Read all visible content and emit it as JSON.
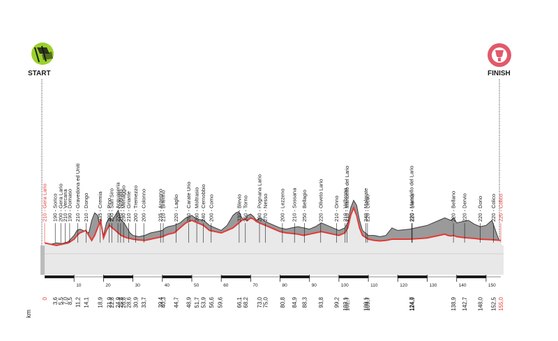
{
  "start_label": "START",
  "finish_label": "FINISH",
  "km_label": "km",
  "colors": {
    "accent_red": "#e53935",
    "profile_gray": "#8a8a8a",
    "profile_fill_dark": "#b5b5b5",
    "profile_fill_light": "#e6e6e6",
    "axis_dark": "#1a1a1a",
    "start_icon_green": "#9bd12b",
    "finish_icon_pink": "#e05a6a"
  },
  "chart_data": {
    "type": "area",
    "title": "",
    "xlabel": "km",
    "ylabel": "",
    "xlim": [
      0,
      155
    ],
    "scale_ticks": [
      "10",
      "20",
      "30",
      "40",
      "50",
      "60",
      "70",
      "80",
      "90",
      "100",
      "110",
      "120",
      "130",
      "140",
      "150"
    ],
    "waypoints": [
      {
        "km": "0",
        "label": "210 - Gera Lario",
        "highlight": true
      },
      {
        "km": "3,6",
        "label": "190 - Sorico"
      },
      {
        "km": "5,5",
        "label": "200 - Gera Lario"
      },
      {
        "km": "7,0",
        "label": "210 - Vercana"
      },
      {
        "km": "8,5",
        "label": "190 - Domaso"
      },
      {
        "km": "11,2",
        "label": "210 - Gravedona ed Uniti"
      },
      {
        "km": "14,1",
        "label": "210 - Dongo"
      },
      {
        "km": "18,9",
        "label": "335 - Cremia"
      },
      {
        "km": "21,9",
        "label": "200 - Pino"
      },
      {
        "km": "22,8",
        "label": "200 - San Siro"
      },
      {
        "km": "24,9",
        "label": "220 - Acquaseria"
      },
      {
        "km": "25,8",
        "label": "210 - Nobiallo"
      },
      {
        "km": "26,8",
        "label": "290 - Menaggio"
      },
      {
        "km": "28,6",
        "label": "210 - Griante"
      },
      {
        "km": "30,9",
        "label": "200 - Tremezzo"
      },
      {
        "km": "33,7",
        "label": "200 - Colonno"
      },
      {
        "km": "39,4",
        "label": "235 - Argegno"
      },
      {
        "km": "40,3",
        "label": "210 - Brienno"
      },
      {
        "km": "44,7",
        "label": "220 - Laglio"
      },
      {
        "km": "48,9",
        "label": "260 - Carate Urio"
      },
      {
        "km": "51,7",
        "label": "280 - Moltrasio"
      },
      {
        "km": "53,9",
        "label": "240 - Cernobbio"
      },
      {
        "km": "56,6",
        "label": "200 - Como"
      },
      {
        "km": "59,6",
        "label": ""
      },
      {
        "km": "66,1",
        "label": "330 - Blevio"
      },
      {
        "km": "68,2",
        "label": "250 - Torno"
      },
      {
        "km": "73,0",
        "label": "290 - Pognana Lario"
      },
      {
        "km": "75,0",
        "label": "270 - Nesso"
      },
      {
        "km": "80,8",
        "label": "200 - Lezzeno"
      },
      {
        "km": "84,9",
        "label": "210 - Sossana"
      },
      {
        "km": "88,3",
        "label": "250 - Bellagio"
      },
      {
        "km": "93,8",
        "label": "220 - Oliveto Lario"
      },
      {
        "km": "99,2",
        "label": "210 - Onno"
      },
      {
        "km": "102,1",
        "label": "210 - Valbrona"
      },
      {
        "km": "102,7",
        "label": "210 - Mandello del Lario"
      },
      {
        "km": "109,1",
        "label": "240 - Malgrate"
      },
      {
        "km": "109,7",
        "label": "220 - Lecco"
      },
      {
        "km": "124,7",
        "label": "220 - Mandello del Lario"
      },
      {
        "km": "124,9",
        "label": "220 - Lierna"
      },
      {
        "km": "138,9",
        "label": "220 - Bellano"
      },
      {
        "km": "142,7",
        "label": "220 - Dervio"
      },
      {
        "km": "148,0",
        "label": "220 - Dorio"
      },
      {
        "km": "152,5",
        "label": "220 - Colico"
      },
      {
        "km": "155,0",
        "label": "220 - Colico",
        "highlight": true
      }
    ],
    "profile_km": [
      0,
      2,
      4,
      6,
      8,
      10,
      11,
      12,
      14,
      15,
      16,
      17,
      18,
      19,
      20,
      21,
      22,
      23,
      24,
      25,
      26,
      27,
      28,
      29,
      30,
      32,
      34,
      36,
      38,
      40,
      41,
      42,
      44,
      46,
      48,
      50,
      51,
      52,
      54,
      55,
      56,
      58,
      60,
      62,
      64,
      65,
      66,
      67,
      68,
      69,
      70,
      71,
      72,
      73,
      74,
      75,
      76,
      78,
      80,
      82,
      84,
      86,
      88,
      90,
      92,
      94,
      96,
      98,
      100,
      102,
      103,
      104,
      105,
      106,
      107,
      108,
      110,
      112,
      114,
      116,
      118,
      120,
      124,
      128,
      130,
      132,
      134,
      136,
      137,
      138,
      139,
      140,
      142,
      144,
      146,
      148,
      150,
      152,
      155
    ],
    "profile_gray_m": [
      200,
      205,
      210,
      208,
      215,
      240,
      260,
      265,
      255,
      250,
      300,
      330,
      320,
      260,
      240,
      290,
      310,
      300,
      320,
      340,
      300,
      290,
      270,
      250,
      240,
      235,
      240,
      250,
      255,
      260,
      270,
      275,
      280,
      290,
      310,
      320,
      310,
      305,
      300,
      290,
      280,
      270,
      260,
      280,
      320,
      330,
      335,
      310,
      300,
      320,
      325,
      315,
      300,
      310,
      305,
      295,
      290,
      280,
      270,
      265,
      270,
      275,
      270,
      265,
      275,
      290,
      280,
      270,
      260,
      270,
      290,
      350,
      380,
      360,
      300,
      260,
      240,
      240,
      235,
      240,
      270,
      260,
      265,
      275,
      280,
      290,
      300,
      310,
      305,
      300,
      310,
      290,
      295,
      300,
      285,
      275,
      280,
      300,
      200
    ],
    "profile_red_m": [
      210,
      205,
      200,
      205,
      210,
      225,
      240,
      250,
      260,
      240,
      220,
      240,
      270,
      300,
      230,
      260,
      280,
      270,
      260,
      250,
      240,
      235,
      230,
      228,
      225,
      222,
      220,
      225,
      230,
      235,
      240,
      245,
      250,
      270,
      290,
      300,
      295,
      290,
      280,
      270,
      260,
      255,
      250,
      260,
      270,
      280,
      290,
      300,
      305,
      300,
      310,
      305,
      295,
      290,
      285,
      280,
      275,
      265,
      255,
      250,
      248,
      245,
      240,
      245,
      250,
      255,
      250,
      245,
      240,
      250,
      270,
      320,
      350,
      320,
      270,
      240,
      225,
      220,
      218,
      220,
      225,
      225,
      225,
      228,
      230,
      235,
      240,
      245,
      240,
      238,
      240,
      235,
      232,
      230,
      228,
      225,
      224,
      223,
      220
    ]
  }
}
